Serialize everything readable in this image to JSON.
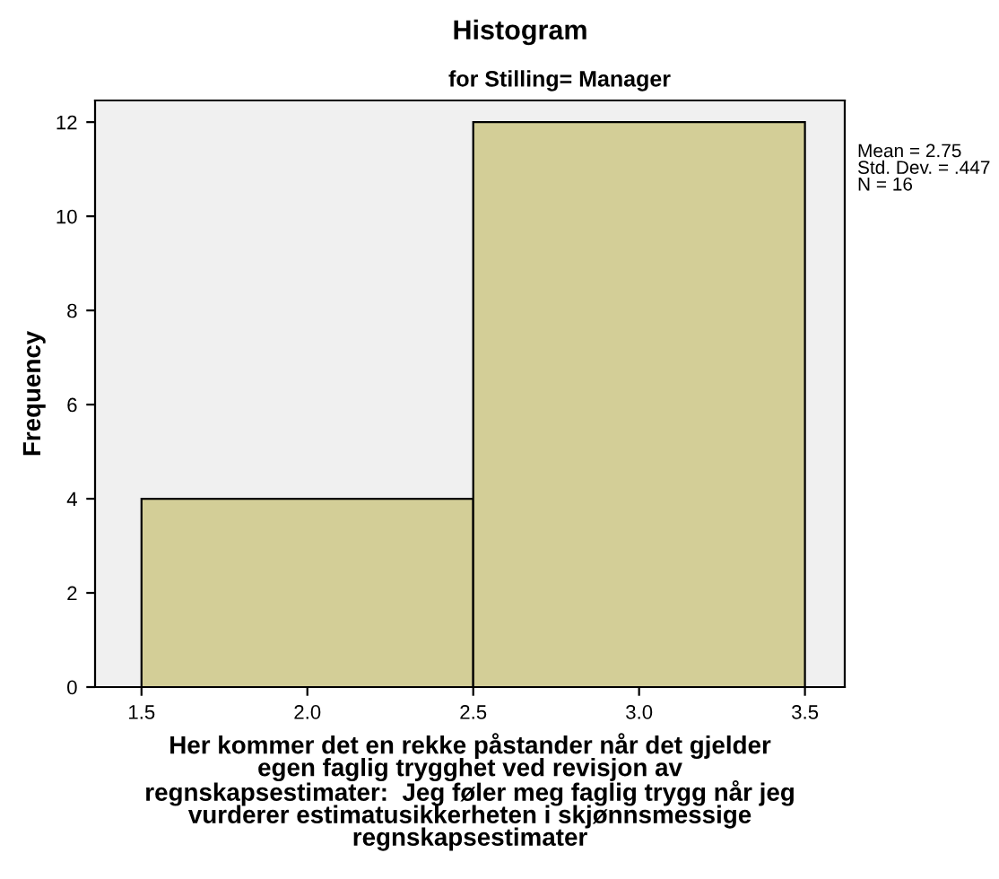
{
  "chart_data": {
    "type": "histogram",
    "title": "Histogram",
    "subtitle": "for Stilling= Manager",
    "xlabel": "Her kommer det en rekke påstander når det gjelder\negen faglig trygghet ved revisjon av\nregnskapsestimater:  Jeg føler meg faglig trygg når jeg\nvurderer estimatusikkerheten i skjønnsmessige\nregnskapsestimater",
    "ylabel": "Frequency",
    "bins": [
      1.5,
      2.5,
      3.5
    ],
    "values": [
      4,
      12
    ],
    "color": "#d3ce97",
    "xlim": [
      1.36,
      3.62
    ],
    "ylim": [
      0,
      12.46
    ],
    "xticks": [
      {
        "value": 1.5,
        "label": "1.5"
      },
      {
        "value": 2.0,
        "label": "2.0"
      },
      {
        "value": 2.5,
        "label": "2.5"
      },
      {
        "value": 3.0,
        "label": "3.0"
      },
      {
        "value": 3.5,
        "label": "3.5"
      }
    ],
    "yticks": [
      0,
      2,
      4,
      6,
      8,
      10,
      12
    ],
    "annotations": [
      "Mean = 2.75",
      "Std. Dev. = .447",
      "N = 16"
    ],
    "grid": false,
    "legend": false
  }
}
